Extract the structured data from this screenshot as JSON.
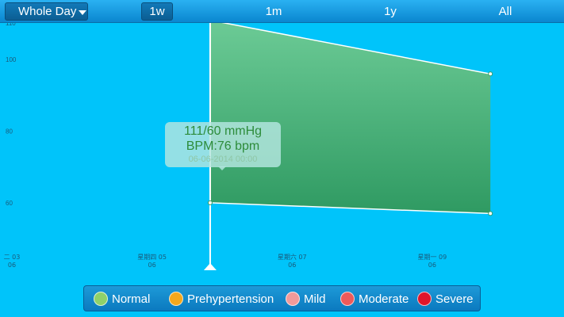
{
  "header": {
    "range_label": "Whole Day",
    "tabs": [
      {
        "label": "1w",
        "active": true
      },
      {
        "label": "1m",
        "active": false
      },
      {
        "label": "1y",
        "active": false
      },
      {
        "label": "All",
        "active": false
      }
    ]
  },
  "tooltip": {
    "pressure": "111/60 mmHg",
    "bpm": "BPM:76 bpm",
    "datetime": "06-06-2014 00:00"
  },
  "legend": [
    {
      "label": "Normal",
      "color": "#8fd16a",
      "selected": true
    },
    {
      "label": "Prehypertension",
      "color": "#f5a81d",
      "selected": false
    },
    {
      "label": "Mild",
      "color": "#f29a9a",
      "selected": false
    },
    {
      "label": "Moderate",
      "color": "#ef5a5a",
      "selected": false
    },
    {
      "label": "Severe",
      "color": "#e0152a",
      "selected": false
    }
  ],
  "chart_data": {
    "type": "area",
    "ylim": [
      50,
      110
    ],
    "yticks": [
      60,
      80,
      100
    ],
    "ytick_labels": [
      "60",
      "80",
      "100"
    ],
    "top_tick_label": "110",
    "x_ticks": [
      {
        "day": 3,
        "line1": "二 03",
        "line2": "06"
      },
      {
        "day": 5,
        "line1": "星期四 05",
        "line2": "06"
      },
      {
        "day": 7,
        "line1": "星期六 07",
        "line2": "06"
      },
      {
        "day": 9,
        "line1": "星期一 09",
        "line2": "06"
      }
    ],
    "xlim": [
      3,
      10.7
    ],
    "series": [
      {
        "values": [
          {
            "x": 6,
            "y": 111
          },
          {
            "x": 10,
            "y": 96
          }
        ]
      },
      {
        "values": [
          {
            "x": 6,
            "y": 60
          },
          {
            "x": 10,
            "y": 57
          }
        ]
      }
    ],
    "fill_color": "#3fae72",
    "cursor_x": 6
  }
}
